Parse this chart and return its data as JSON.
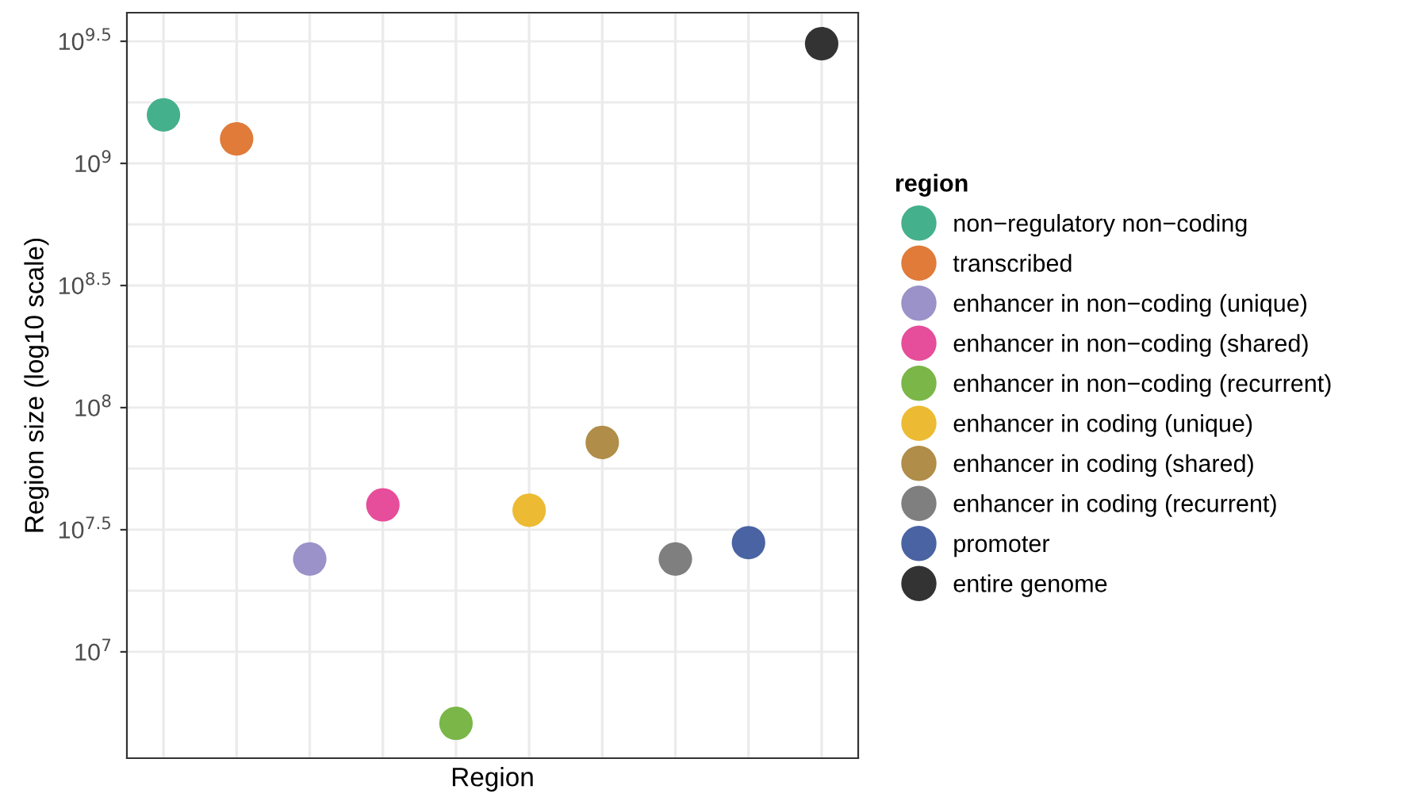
{
  "chart_data": {
    "type": "scatter",
    "xlabel": "Region",
    "ylabel": "Region size (log10 scale)",
    "legend_title": "region",
    "legend": "right",
    "log": true,
    "grid": true,
    "tick_labels": "y",
    "marker": "circle",
    "categories": [
      null,
      null,
      null,
      null,
      null,
      null,
      null,
      null,
      null,
      null
    ],
    "ylim": [
      3670000,
      4140000000
    ],
    "yticks": [
      {
        "value": 10000000,
        "label": "10$^{7}$"
      },
      {
        "value": 31622777,
        "label": "10$^{7.5}$"
      },
      {
        "value": 100000000,
        "label": "10$^{8}$"
      },
      {
        "value": 316227766,
        "label": "10$^{8.5}$"
      },
      {
        "value": 1000000000,
        "label": "10$^{9}$"
      },
      {
        "value": 3162277660,
        "label": "10$^{9.5}$"
      }
    ],
    "series": [
      {
        "name": "non−regulatory non−coding",
        "color": "#45b08c",
        "values": [
          1580000000,
          null,
          null,
          null,
          null,
          null,
          null,
          null,
          null,
          null
        ]
      },
      {
        "name": "transcribed",
        "color": "#e07b39",
        "values": [
          null,
          1260000000,
          null,
          null,
          null,
          null,
          null,
          null,
          null,
          null
        ]
      },
      {
        "name": "enhancer in non−coding (unique)",
        "color": "#9a92c8",
        "values": [
          null,
          null,
          24000000,
          null,
          null,
          null,
          null,
          null,
          null,
          null
        ]
      },
      {
        "name": "enhancer in non−coding (shared)",
        "color": "#e64d9a",
        "values": [
          null,
          null,
          null,
          40000000,
          null,
          null,
          null,
          null,
          null,
          null
        ]
      },
      {
        "name": "enhancer in non−coding (recurrent)",
        "color": "#7ab648",
        "values": [
          null,
          null,
          null,
          null,
          5100000,
          null,
          null,
          null,
          null,
          null
        ]
      },
      {
        "name": "enhancer in coding (unique)",
        "color": "#ecbb33",
        "values": [
          null,
          null,
          null,
          null,
          null,
          38000000,
          null,
          null,
          null,
          null
        ]
      },
      {
        "name": "enhancer in coding (shared)",
        "color": "#b08d48",
        "values": [
          null,
          null,
          null,
          null,
          null,
          null,
          72000000,
          null,
          null,
          null
        ]
      },
      {
        "name": "enhancer in coding (recurrent)",
        "color": "#7f7f7f",
        "values": [
          null,
          null,
          null,
          null,
          null,
          null,
          null,
          24000000,
          null,
          null
        ]
      },
      {
        "name": "promoter",
        "color": "#4a63a3",
        "values": [
          null,
          null,
          null,
          null,
          null,
          null,
          null,
          null,
          28000000,
          null
        ]
      },
      {
        "name": "entire genome",
        "color": "#333333",
        "values": [
          null,
          null,
          null,
          null,
          null,
          null,
          null,
          null,
          null,
          3090000000
        ]
      }
    ]
  }
}
